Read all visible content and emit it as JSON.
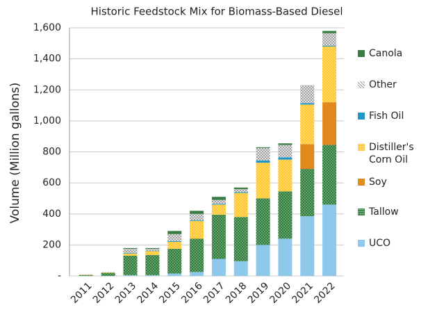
{
  "chart_data": {
    "type": "stacked_bar",
    "title": "Historic Feedstock Mix for Biomass-Based Diesel",
    "y_label": "Volume (Million gallons)",
    "categories": [
      "2011",
      "2012",
      "2013",
      "2014",
      "2015",
      "2016",
      "2017",
      "2018",
      "2019",
      "2020",
      "2021",
      "2022"
    ],
    "series": [
      {
        "name": "UCO",
        "color": "#8ec9ec",
        "pattern": "solid",
        "values": [
          0,
          0,
          5,
          5,
          15,
          25,
          110,
          95,
          200,
          240,
          385,
          460
        ]
      },
      {
        "name": "Tallow",
        "color": "#2e7d3a",
        "pattern": "dots",
        "values": [
          5,
          20,
          125,
          130,
          160,
          215,
          285,
          285,
          300,
          305,
          305,
          385
        ]
      },
      {
        "name": "Soy",
        "color": "#e08a1e",
        "pattern": "solid",
        "values": [
          0,
          0,
          0,
          0,
          0,
          0,
          0,
          0,
          0,
          0,
          160,
          275
        ]
      },
      {
        "name": "Distiller's Corn Oil",
        "color": "#ffc72c",
        "pattern": "dots",
        "values": [
          2,
          3,
          15,
          25,
          45,
          115,
          65,
          155,
          230,
          205,
          255,
          360
        ]
      },
      {
        "name": "Fish Oil",
        "color": "#2196c9",
        "pattern": "solid",
        "values": [
          0,
          0,
          3,
          3,
          5,
          5,
          5,
          5,
          15,
          15,
          10,
          5
        ]
      },
      {
        "name": "Other",
        "color": "#9a9a9a",
        "pattern": "crosshatch",
        "values": [
          3,
          2,
          27,
          12,
          45,
          40,
          25,
          20,
          80,
          80,
          115,
          80
        ]
      },
      {
        "name": "Canola",
        "color": "#3a7d44",
        "pattern": "solid",
        "values": [
          0,
          0,
          5,
          5,
          20,
          20,
          20,
          10,
          5,
          10,
          0,
          15
        ]
      }
    ],
    "ylim": [
      0,
      1600
    ],
    "yticks": [
      {
        "value": 0,
        "label": "-"
      },
      {
        "value": 200,
        "label": "200"
      },
      {
        "value": 400,
        "label": "400"
      },
      {
        "value": 600,
        "label": "600"
      },
      {
        "value": 800,
        "label": "800"
      },
      {
        "value": 1000,
        "label": "1,000"
      },
      {
        "value": 1200,
        "label": "1,200"
      },
      {
        "value": 1400,
        "label": "1,400"
      },
      {
        "value": 1600,
        "label": "1,600"
      }
    ],
    "grid": true,
    "legend": "right"
  }
}
